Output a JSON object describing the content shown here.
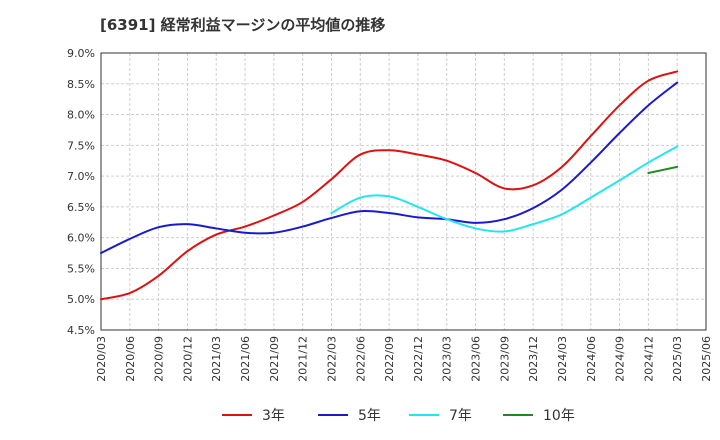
{
  "chart_data": {
    "type": "line",
    "title": "[6391]  経常利益マージンの平均値の推移",
    "xlabel": "",
    "ylabel": "",
    "ylim": [
      4.5,
      9.0
    ],
    "y_ticks": [
      "4.5%",
      "5.0%",
      "5.5%",
      "6.0%",
      "6.5%",
      "7.0%",
      "7.5%",
      "8.0%",
      "8.5%",
      "9.0%"
    ],
    "x_ticks": [
      "2020/03",
      "2020/06",
      "2020/09",
      "2020/12",
      "2021/03",
      "2021/06",
      "2021/09",
      "2021/12",
      "2022/03",
      "2022/06",
      "2022/09",
      "2022/12",
      "2023/03",
      "2023/06",
      "2023/09",
      "2023/12",
      "2024/03",
      "2024/06",
      "2024/09",
      "2024/12",
      "2025/03",
      "2025/06"
    ],
    "grid": true,
    "legend_position": "bottom",
    "x": [
      "2020/03",
      "2020/06",
      "2020/09",
      "2020/12",
      "2021/03",
      "2021/06",
      "2021/09",
      "2021/12",
      "2022/03",
      "2022/06",
      "2022/09",
      "2022/12",
      "2023/03",
      "2023/06",
      "2023/09",
      "2023/12",
      "2024/03",
      "2024/06",
      "2024/09",
      "2024/12",
      "2025/03"
    ],
    "series": [
      {
        "name": "3年",
        "color": "#dd1111",
        "values": [
          5.0,
          5.1,
          5.38,
          5.78,
          6.05,
          6.18,
          6.36,
          6.58,
          6.95,
          7.35,
          7.42,
          7.35,
          7.25,
          7.05,
          6.8,
          6.85,
          7.15,
          7.65,
          8.15,
          8.55,
          8.7
        ]
      },
      {
        "name": "5年",
        "color": "#1a1acc",
        "values": [
          5.75,
          5.98,
          6.17,
          6.22,
          6.15,
          6.08,
          6.08,
          6.18,
          6.32,
          6.43,
          6.4,
          6.33,
          6.3,
          6.24,
          6.3,
          6.48,
          6.78,
          7.22,
          7.7,
          8.15,
          8.52
        ]
      },
      {
        "name": "7年",
        "color": "#22e5f0",
        "values": [
          null,
          null,
          null,
          null,
          null,
          null,
          null,
          null,
          6.4,
          6.65,
          6.67,
          6.5,
          6.3,
          6.15,
          6.1,
          6.22,
          6.38,
          6.65,
          6.93,
          7.22,
          7.48
        ]
      },
      {
        "name": "10年",
        "color": "#228822",
        "values": [
          null,
          null,
          null,
          null,
          null,
          null,
          null,
          null,
          null,
          null,
          null,
          null,
          null,
          null,
          null,
          null,
          null,
          null,
          null,
          7.05,
          7.15
        ]
      }
    ]
  }
}
